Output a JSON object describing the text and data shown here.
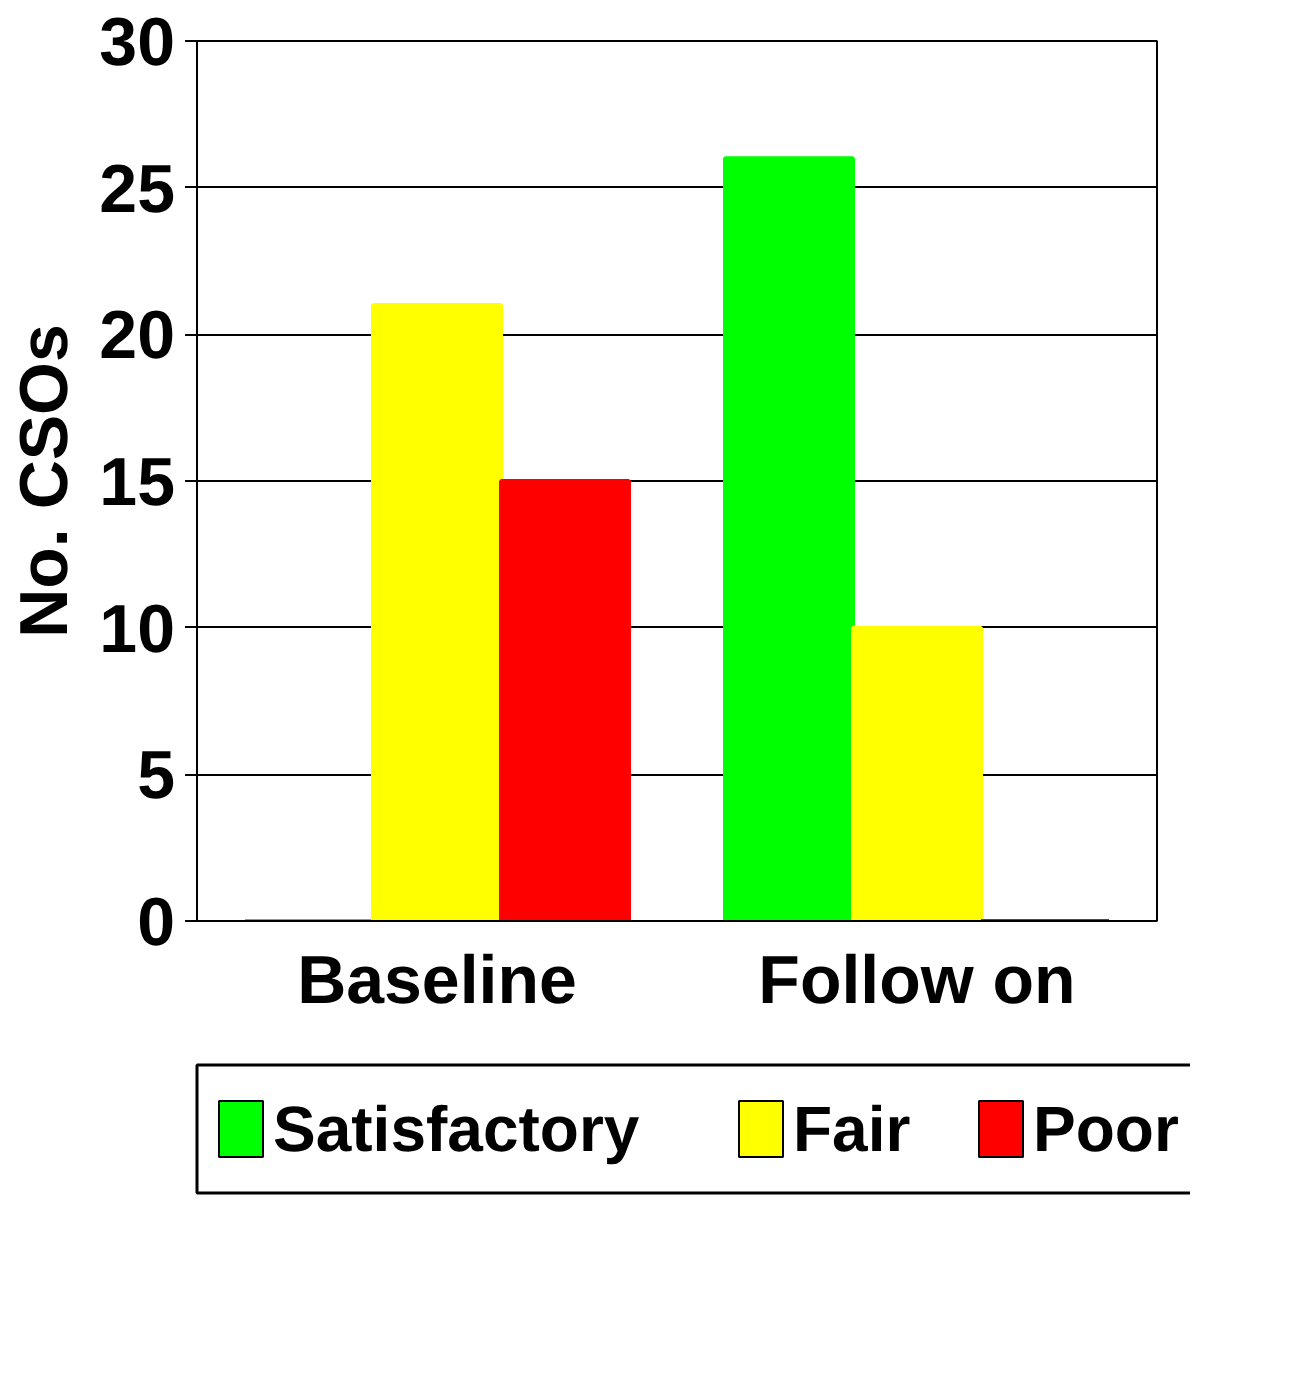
{
  "chart_data": {
    "type": "bar",
    "ylabel": "No. CSOs",
    "categories": [
      "Baseline",
      "Follow on"
    ],
    "series": [
      {
        "name": "Satisfactory",
        "color": "#00ff00",
        "values": [
          0,
          26
        ]
      },
      {
        "name": "Fair",
        "color": "#ffff00",
        "values": [
          21,
          10
        ]
      },
      {
        "name": "Poor",
        "color": "#ff0000",
        "values": [
          15,
          0
        ]
      }
    ],
    "ylim": [
      0,
      30
    ],
    "yticks": [
      0,
      5,
      10,
      15,
      20,
      25,
      30
    ],
    "grid": "y",
    "legend": "bottom"
  }
}
